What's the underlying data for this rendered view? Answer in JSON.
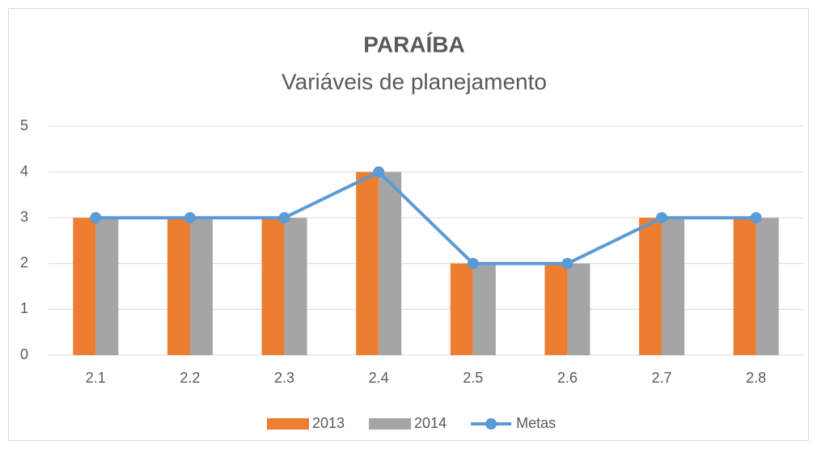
{
  "chart_data": {
    "type": "bar",
    "title": "PARAÍBA",
    "subtitle": "Variáveis de planejamento",
    "categories": [
      "2.1",
      "2.2",
      "2.3",
      "2.4",
      "2.5",
      "2.6",
      "2.7",
      "2.8"
    ],
    "series": [
      {
        "name": "2013",
        "type": "bar",
        "color": "#ED7D31",
        "values": [
          3,
          3,
          3,
          4,
          2,
          2,
          3,
          3
        ]
      },
      {
        "name": "2014",
        "type": "bar",
        "color": "#A5A5A5",
        "values": [
          3,
          3,
          3,
          4,
          2,
          2,
          3,
          3
        ]
      },
      {
        "name": "Metas",
        "type": "line",
        "color": "#5B9BD5",
        "values": [
          3,
          3,
          3,
          4,
          2,
          2,
          3,
          3
        ]
      }
    ],
    "ylim": [
      0,
      5
    ],
    "yticks": [
      0,
      1,
      2,
      3,
      4,
      5
    ],
    "grid": true,
    "legend": "bottom"
  }
}
